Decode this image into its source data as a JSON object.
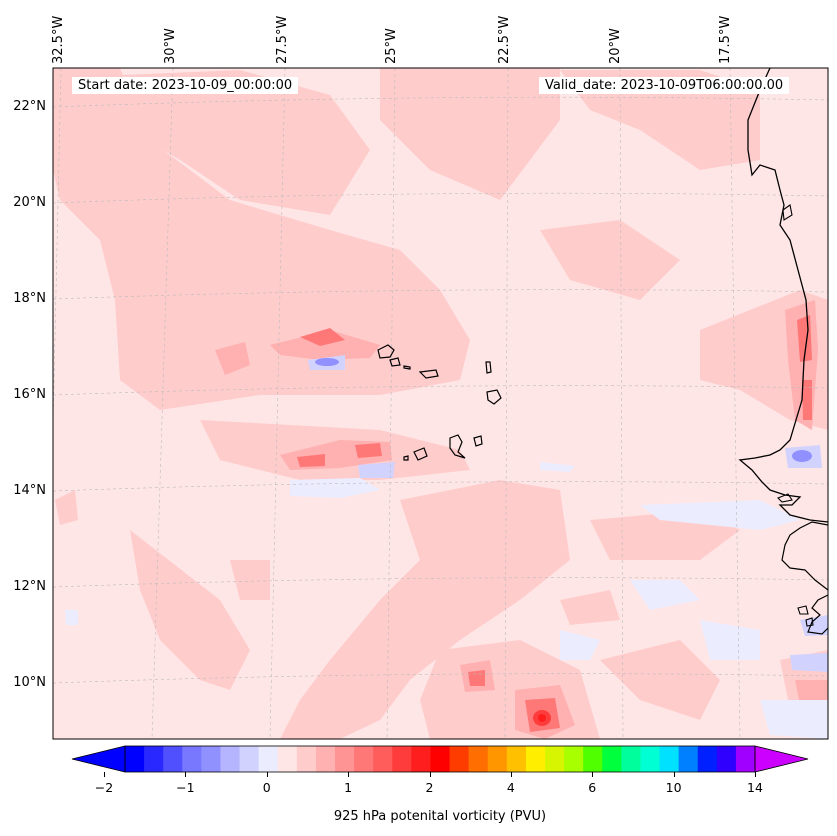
{
  "map": {
    "start_date_text": "Start date: 2023-10-09_00:00:00",
    "valid_date_text": "Valid_date: 2023-10-09T06:00:00.00",
    "lon_labels": [
      "32.5°W",
      "30°W",
      "27.5°W",
      "25°W",
      "22.5°W",
      "20°W",
      "17.5°W"
    ],
    "lat_labels": [
      "22°N",
      "20°N",
      "18°N",
      "16°N",
      "14°N",
      "12°N",
      "10°N"
    ],
    "background_color": "#ffe6e6",
    "coastline_color": "#000000",
    "grid": true
  },
  "colorbar": {
    "label": "925 hPa potenital vorticity (PVU)",
    "ticks": [
      "−2",
      "−1",
      "0",
      "1",
      "2",
      "4",
      "6",
      "10",
      "14"
    ],
    "colors": [
      "#0000ff",
      "#2828ff",
      "#5050ff",
      "#7878ff",
      "#9090ff",
      "#b4b4ff",
      "#d2d2ff",
      "#ececff",
      "#ffe6e6",
      "#ffcccc",
      "#ffb0b0",
      "#ff9494",
      "#ff7878",
      "#ff5c5c",
      "#ff3c3c",
      "#ff1e1e",
      "#ff0000",
      "#ff3c00",
      "#ff6e00",
      "#ff9600",
      "#ffc000",
      "#ffee00",
      "#d7f500",
      "#a8ff00",
      "#50ff00",
      "#00ff3c",
      "#00ff9c",
      "#00ffd2",
      "#00e0ff",
      "#0080ff",
      "#0020ff",
      "#3000ff",
      "#a000ff"
    ],
    "extend_low_color": "#0000ff",
    "extend_high_color": "#cc00ff"
  }
}
